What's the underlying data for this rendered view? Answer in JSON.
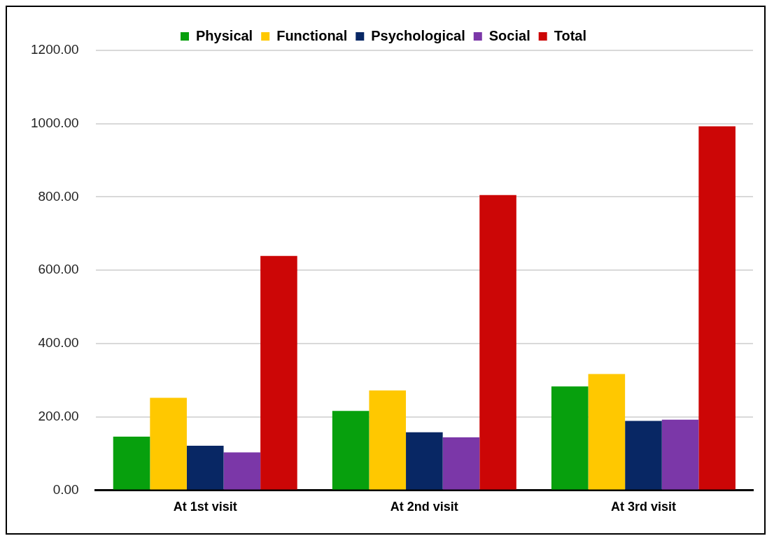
{
  "chart_data": {
    "type": "bar",
    "categories": [
      "At 1st visit",
      "At 2nd visit",
      "At 3rd visit"
    ],
    "series": [
      {
        "name": "Physical",
        "color": "#07a00d",
        "values": [
          146,
          216,
          283
        ]
      },
      {
        "name": "Functional",
        "color": "#ffc800",
        "values": [
          252,
          272,
          317
        ]
      },
      {
        "name": "Psychological",
        "color": "#082764",
        "values": [
          121,
          158,
          189
        ]
      },
      {
        "name": "Social",
        "color": "#7b37a8",
        "values": [
          103,
          144,
          192
        ]
      },
      {
        "name": "Total",
        "color": "#cc0606",
        "values": [
          639,
          805,
          993
        ]
      }
    ],
    "ylim": [
      0,
      1200
    ],
    "yticks": [
      {
        "value": 0,
        "label": "0.00"
      },
      {
        "value": 200,
        "label": "200.00"
      },
      {
        "value": 400,
        "label": "400.00"
      },
      {
        "value": 600,
        "label": "600.00"
      },
      {
        "value": 800,
        "label": "800.00"
      },
      {
        "value": 1000,
        "label": "1000.00"
      },
      {
        "value": 1200,
        "label": "1200.00"
      }
    ],
    "grid": "y",
    "legend": "top"
  }
}
